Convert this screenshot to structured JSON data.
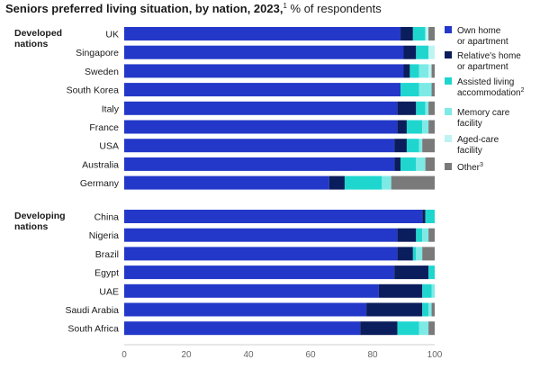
{
  "title": "Seniors preferred living situation, by nation, 2023,",
  "title_footnote": "1",
  "subtitle": " % of respondents",
  "colors": {
    "own_home": "#2338c8",
    "relatives_home": "#0a1d5c",
    "assisted_living": "#1fd6cf",
    "memory_care": "#7eeae6",
    "aged_care": "#bdf4f2",
    "other": "#7a7a7a"
  },
  "legend": [
    {
      "key": "own_home",
      "lines": [
        "Own home",
        "or apartment"
      ],
      "sup": ""
    },
    {
      "key": "relatives_home",
      "lines": [
        "Relative's home",
        "or apartment"
      ],
      "sup": ""
    },
    {
      "key": "assisted_living",
      "lines": [
        "Assisted living",
        "accommodation"
      ],
      "sup": "2"
    },
    {
      "key": "memory_care",
      "lines": [
        "Memory care",
        "facility"
      ],
      "sup": ""
    },
    {
      "key": "aged_care",
      "lines": [
        "Aged-care",
        "facility"
      ],
      "sup": ""
    },
    {
      "key": "other",
      "lines": [
        "Other"
      ],
      "sup": "3"
    }
  ],
  "chart_data": {
    "type": "bar",
    "orientation": "horizontal",
    "stacked": true,
    "xlim": [
      0,
      100
    ],
    "xticks": [
      0,
      20,
      40,
      60,
      80,
      100
    ],
    "grid": false,
    "legend_position": "right",
    "series_order": [
      "own_home",
      "relatives_home",
      "assisted_living",
      "memory_care",
      "aged_care",
      "other"
    ],
    "groups": [
      {
        "label_lines": [
          "Developed",
          "nations"
        ],
        "rows": [
          {
            "country": "UK",
            "values": [
              89,
              4,
              4,
              0,
              1,
              2
            ]
          },
          {
            "country": "Singapore",
            "values": [
              90,
              4,
              4,
              0,
              2,
              0
            ]
          },
          {
            "country": "Sweden",
            "values": [
              90,
              2,
              3,
              3,
              1,
              1
            ]
          },
          {
            "country": "South Korea",
            "values": [
              89,
              0,
              6,
              4,
              0,
              1
            ]
          },
          {
            "country": "Italy",
            "values": [
              88,
              6,
              3,
              1,
              0,
              2
            ]
          },
          {
            "country": "France",
            "values": [
              88,
              3,
              5,
              2,
              0,
              2
            ]
          },
          {
            "country": "USA",
            "values": [
              87,
              4,
              4,
              1,
              0,
              4
            ]
          },
          {
            "country": "Australia",
            "values": [
              87,
              2,
              5,
              3,
              0,
              3
            ]
          },
          {
            "country": "Germany",
            "values": [
              66,
              5,
              12,
              3,
              0,
              14
            ]
          }
        ]
      },
      {
        "label_lines": [
          "Developing",
          "nations"
        ],
        "rows": [
          {
            "country": "China",
            "values": [
              96,
              1,
              3,
              0,
              0,
              0
            ]
          },
          {
            "country": "Nigeria",
            "values": [
              88,
              6,
              2,
              2,
              0,
              2
            ]
          },
          {
            "country": "Brazil",
            "values": [
              88,
              5,
              1,
              2,
              0,
              4
            ]
          },
          {
            "country": "Egypt",
            "values": [
              87,
              11,
              2,
              0,
              0,
              0
            ]
          },
          {
            "country": "UAE",
            "values": [
              82,
              14,
              3,
              1,
              0,
              0
            ]
          },
          {
            "country": "Saudi Arabia",
            "values": [
              78,
              18,
              2,
              1,
              0,
              1
            ]
          },
          {
            "country": "South Africa",
            "values": [
              76,
              12,
              7,
              3,
              0,
              2
            ]
          }
        ]
      }
    ]
  }
}
